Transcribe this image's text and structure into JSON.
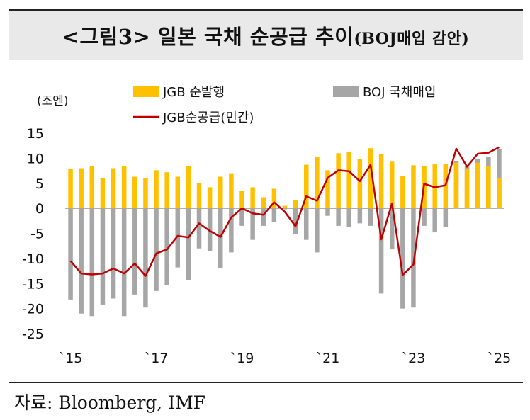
{
  "title": {
    "main": "<그림3> 일본 국채 순공급 추이",
    "sub": "(BOJ매입 감안)"
  },
  "source": "자료: Bloomberg, IMF",
  "colors": {
    "jgb": "#FFC000",
    "boj": "#A6A6A6",
    "line": "#C00000"
  },
  "chart_data": {
    "type": "bar",
    "unit_label": "(조엔)",
    "ylim": [
      -25,
      15
    ],
    "yticks": [
      15,
      10,
      5,
      0,
      -5,
      -10,
      -15,
      -20,
      -25
    ],
    "xtick_labels": [
      "`15",
      "`17",
      "`19",
      "`21",
      "`23",
      "`25"
    ],
    "xtick_index": [
      0,
      8,
      16,
      24,
      32,
      40
    ],
    "legend_placement": "top",
    "periods": [
      "2015 Q1",
      "2015 Q2",
      "2015 Q3",
      "2015 Q4",
      "2016 Q1",
      "2016 Q2",
      "2016 Q3",
      "2016 Q4",
      "2017 Q1",
      "2017 Q2",
      "2017 Q3",
      "2017 Q4",
      "2018 Q1",
      "2018 Q2",
      "2018 Q3",
      "2018 Q4",
      "2019 Q1",
      "2019 Q2",
      "2019 Q3",
      "2019 Q4",
      "2020 Q1",
      "2020 Q2",
      "2020 Q3",
      "2020 Q4",
      "2021 Q1",
      "2021 Q2",
      "2021 Q3",
      "2021 Q4",
      "2022 Q1",
      "2022 Q2",
      "2022 Q3",
      "2022 Q4",
      "2023 Q1",
      "2023 Q2",
      "2023 Q3",
      "2023 Q4",
      "2024 Q1",
      "2024 Q2",
      "2024 Q3",
      "2024 Q4",
      "2025 Q1"
    ],
    "series": [
      {
        "name": "JGB 순발행",
        "kind": "bar",
        "values": [
          7.8,
          8.0,
          8.5,
          6.0,
          8.0,
          8.5,
          6.3,
          6.0,
          7.6,
          7.2,
          6.3,
          8.5,
          5.0,
          4.2,
          6.3,
          7.0,
          3.5,
          4.2,
          2.2,
          3.9,
          0.5,
          1.6,
          8.7,
          10.3,
          7.6,
          11.0,
          11.3,
          9.8,
          12.0,
          10.8,
          9.3,
          6.4,
          8.6,
          8.5,
          8.9,
          8.8,
          9.1,
          7.8,
          9.1,
          8.5,
          6.0
        ]
      },
      {
        "name": "BOJ 국채매입",
        "kind": "bar",
        "values": [
          -18.2,
          -21.0,
          -21.5,
          -19.2,
          -18.0,
          -21.5,
          -17.2,
          -19.8,
          -16.5,
          -15.3,
          -11.8,
          -14.3,
          -8.0,
          -8.6,
          -12.0,
          -8.8,
          -3.5,
          -6.3,
          -3.5,
          -2.8,
          -0.2,
          -5.2,
          -6.3,
          -8.8,
          -1.5,
          -3.5,
          -3.8,
          -3.0,
          -3.5,
          -17.0,
          -8.2,
          -20.0,
          -19.8,
          -3.5,
          -4.8,
          -3.7,
          9.5,
          8.5,
          9.8,
          10.2,
          11.8
        ]
      },
      {
        "name": "JGB순공급(민간)",
        "kind": "line",
        "values": [
          -10.5,
          -13.0,
          -13.2,
          -13.0,
          -12.0,
          -13.0,
          -11.0,
          -13.5,
          -9.0,
          -8.2,
          -5.5,
          -5.8,
          -3.0,
          -4.5,
          -5.7,
          -1.8,
          0.0,
          -1.0,
          -1.3,
          1.2,
          -0.7,
          -3.6,
          2.4,
          1.5,
          6.1,
          7.6,
          7.4,
          5.4,
          8.7,
          -6.2,
          1.0,
          -13.3,
          -11.2,
          4.9,
          4.2,
          4.6,
          11.9,
          8.3,
          10.9,
          11.1,
          12.2
        ]
      }
    ]
  }
}
